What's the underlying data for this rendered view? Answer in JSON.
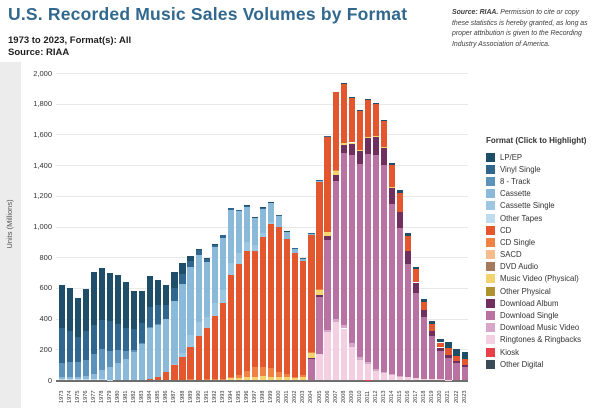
{
  "header": {
    "title": "U.S. Recorded Music Sales Volumes by Format",
    "subtitle_line1": "1973 to 2023, Format(s): All",
    "subtitle_line2": "Source: RIAA"
  },
  "source_note": {
    "lead": "Source: RIAA.",
    "body": " Permission to cite or copy these statistics is hereby granted, as long as proper attribution is given to the Recording Industry Association of America."
  },
  "legend": {
    "title": "Format (Click to Highlight)"
  },
  "y_axis": {
    "title": "Units (Millions)",
    "ticks": [
      {
        "v": 0,
        "label": "0"
      },
      {
        "v": 200,
        "label": "200"
      },
      {
        "v": 400,
        "label": "400"
      },
      {
        "v": 600,
        "label": "600"
      },
      {
        "v": 800,
        "label": "800"
      },
      {
        "v": 1000,
        "label": "1,000"
      },
      {
        "v": 1200,
        "label": "1,200"
      },
      {
        "v": 1400,
        "label": "1,400"
      },
      {
        "v": 1600,
        "label": "1,600"
      },
      {
        "v": 1800,
        "label": "1,800"
      },
      {
        "v": 2000,
        "label": "2,000"
      }
    ]
  },
  "chart_data": {
    "type": "bar",
    "stacked": true,
    "stack_order": "first series renders at top of each stacked bar",
    "title": "U.S. Recorded Music Sales Volumes by Format",
    "xlabel": "Year",
    "ylabel": "Units (Millions)",
    "ylim": [
      0,
      2000
    ],
    "grid": true,
    "legend_position": "right",
    "x": [
      1973,
      1974,
      1975,
      1976,
      1977,
      1978,
      1979,
      1980,
      1981,
      1982,
      1983,
      1984,
      1985,
      1986,
      1987,
      1988,
      1989,
      1990,
      1991,
      1992,
      1993,
      1994,
      1995,
      1996,
      1997,
      1998,
      1999,
      2000,
      2001,
      2002,
      2003,
      2004,
      2005,
      2006,
      2007,
      2008,
      2009,
      2010,
      2011,
      2012,
      2013,
      2014,
      2015,
      2016,
      2017,
      2018,
      2019,
      2020,
      2021,
      2022,
      2023
    ],
    "series": [
      {
        "name": "LP/EP",
        "color": "#1f4e68",
        "values": [
          280,
          276,
          257,
          273,
          344,
          341.3,
          318.3,
          322.8,
          295.2,
          243.9,
          209.6,
          204.6,
          167,
          125.2,
          107,
          72.4,
          34.6,
          11.7,
          4.8,
          2.3,
          1.2,
          1.9,
          2.2,
          2.9,
          2.7,
          3.4,
          2.9,
          2.2,
          2.3,
          1.7,
          1.5,
          1.4,
          1,
          0.9,
          1.3,
          2.9,
          3.2,
          4.2,
          5.5,
          6.5,
          9.4,
          13.2,
          16.9,
          17.2,
          15.6,
          16.7,
          18.8,
          22.9,
          39.7,
          41.3,
          43.2
        ]
      },
      {
        "name": "Vinyl Single",
        "color": "#31678f",
        "values": [
          228,
          204,
          164,
          190,
          190,
          190,
          195.5,
          164.3,
          154.7,
          137.2,
          124.8,
          131.5,
          120.7,
          93.9,
          82,
          65.6,
          36.6,
          27.6,
          22,
          19.8,
          15.1,
          11.7,
          10.2,
          10.1,
          7.5,
          5.4,
          5.3,
          4.8,
          5.5,
          4.4,
          3.8,
          3.5,
          2.8,
          2.3,
          1.7,
          0.4,
          0.9,
          1.2,
          1.3,
          1.4,
          0.8,
          0.8,
          0.8,
          0.7,
          0.7,
          0.6,
          0.6,
          0.6,
          0.8,
          0.9,
          1.2
        ]
      },
      {
        "name": "8 - Track",
        "color": "#5d93bb",
        "values": [
          91,
          96.7,
          94.6,
          106.1,
          127.3,
          133.6,
          104.7,
          86.4,
          48.5,
          14.3,
          6,
          5.9,
          3.5,
          0,
          0,
          0,
          0,
          0,
          0,
          0,
          0,
          0,
          0,
          0,
          0,
          0,
          0,
          0,
          0,
          0,
          0,
          0,
          0,
          0,
          0,
          0,
          0,
          0,
          0,
          0,
          0,
          0,
          0,
          0,
          0,
          0,
          0,
          0,
          0,
          0,
          0
        ]
      },
      {
        "name": "Cassette",
        "color": "#8ab9d9",
        "values": [
          15,
          15.3,
          16.2,
          21.8,
          36.9,
          61.3,
          78.5,
          110.2,
          137,
          182.3,
          236.8,
          332,
          339.1,
          344.5,
          410,
          450.1,
          446.2,
          442.2,
          360.1,
          366.4,
          339.5,
          345.4,
          272.6,
          225.3,
          172.6,
          158.5,
          123.6,
          76,
          45,
          31.1,
          17.2,
          5.2,
          2.5,
          0.7,
          0.4,
          0.1,
          0,
          0,
          0,
          0,
          0,
          0,
          0,
          0,
          0,
          0,
          0,
          0,
          0,
          0,
          0
        ]
      },
      {
        "name": "Cassette Single",
        "color": "#9cc6e2",
        "values": [
          0,
          0,
          0,
          0,
          0,
          0,
          0,
          0,
          0,
          0,
          0,
          0,
          0,
          0,
          5.1,
          22.5,
          76.2,
          87.4,
          69,
          84.6,
          85.6,
          81.1,
          70.7,
          59.9,
          42.2,
          26.4,
          14.2,
          1.3,
          0,
          0,
          0,
          0,
          0,
          0,
          0,
          0,
          0,
          0,
          0,
          0,
          0,
          0,
          0,
          0,
          0,
          0,
          0,
          0,
          0,
          0,
          0
        ]
      },
      {
        "name": "Other Tapes",
        "color": "#bfdcee",
        "values": [
          5,
          5,
          4,
          4,
          4,
          4,
          3,
          2,
          1,
          0.5,
          0.3,
          0,
          0,
          0,
          0,
          0,
          0,
          0,
          0,
          0,
          0,
          0,
          0,
          0,
          0,
          0,
          0,
          0,
          0,
          0,
          0,
          0,
          0,
          0,
          0,
          0,
          0,
          0,
          0,
          0,
          0,
          0,
          0,
          0,
          0,
          0,
          0,
          0,
          0,
          0,
          0
        ]
      },
      {
        "name": "CD",
        "color": "#e4572e",
        "values": [
          0,
          0,
          0,
          0,
          0,
          0,
          0,
          0,
          0,
          0,
          0.8,
          5.8,
          22.6,
          53,
          102.1,
          149.7,
          207.2,
          286.5,
          333.3,
          407.5,
          495.4,
          662.1,
          722.9,
          778.9,
          753.1,
          847,
          938.9,
          942.5,
          881.9,
          803.3,
          746,
          767,
          705.4,
          619.7,
          511.1,
          384.7,
          292.9,
          253,
          240.8,
          210.9,
          165.4,
          140.8,
          122.9,
          99.4,
          87.6,
          52,
          46.5,
          31.6,
          46.6,
          33.4,
          37
        ]
      },
      {
        "name": "CD Single",
        "color": "#f08344",
        "values": [
          0,
          0,
          0,
          0,
          0,
          0,
          0,
          0,
          0,
          0,
          0,
          0,
          0,
          0,
          0,
          1.6,
          9.2,
          1.1,
          5.7,
          7.3,
          7.8,
          9.3,
          21.5,
          43.2,
          66.8,
          56,
          55.9,
          34.2,
          17.3,
          4.5,
          8.3,
          3.1,
          2.8,
          1.7,
          2.6,
          0.7,
          1,
          1,
          0.9,
          0.6,
          0.5,
          0.4,
          0.4,
          0.3,
          0.3,
          0.2,
          0.2,
          0.1,
          0.1,
          0.1,
          0.1
        ]
      },
      {
        "name": "SACD",
        "color": "#f6bc8b",
        "values": [
          0,
          0,
          0,
          0,
          0,
          0,
          0,
          0,
          0,
          0,
          0,
          0,
          0,
          0,
          0,
          0,
          0,
          0,
          0,
          0,
          0,
          0,
          0,
          0,
          0,
          0,
          0,
          0,
          1.3,
          1.3,
          1.3,
          0.8,
          0.8,
          0.6,
          0.2,
          0,
          0,
          0,
          0,
          0,
          0,
          0,
          0,
          0,
          0,
          0,
          0,
          0,
          0,
          0,
          0
        ]
      },
      {
        "name": "DVD Audio",
        "color": "#a5795c",
        "values": [
          0,
          0,
          0,
          0,
          0,
          0,
          0,
          0,
          0,
          0,
          0,
          0,
          0,
          0,
          0,
          0,
          0,
          0,
          0,
          0,
          0,
          0,
          0,
          0,
          0,
          0,
          0,
          0,
          0.3,
          0.4,
          0.4,
          0.4,
          0.3,
          0.2,
          0.1,
          0,
          0,
          0,
          0,
          0,
          0,
          0,
          0,
          0,
          0,
          0,
          0,
          0,
          0,
          0,
          0
        ]
      },
      {
        "name": "Music Video (Physical)",
        "color": "#f3d36e",
        "values": [
          0,
          0,
          0,
          0,
          0,
          0,
          0,
          0,
          0,
          0,
          0,
          0,
          0,
          0,
          0,
          0,
          0,
          0,
          0,
          0,
          0,
          11.2,
          12.6,
          16.9,
          18.6,
          27.2,
          19.8,
          18.2,
          17.7,
          14.7,
          19.9,
          32.8,
          33.8,
          23.2,
          27.5,
          12.8,
          9.1,
          6.7,
          5.5,
          3.9,
          3.1,
          2.4,
          1.8,
          1.2,
          0.9,
          0.6,
          0.5,
          0.3,
          0.3,
          0.2,
          0.2
        ]
      },
      {
        "name": "Other Physical",
        "color": "#af9230",
        "values": [
          0,
          0,
          0,
          0,
          0,
          0,
          0,
          0,
          0,
          0,
          0,
          0,
          0,
          0,
          0,
          0,
          0,
          0,
          0,
          0,
          0,
          0,
          0,
          0,
          0,
          0,
          0,
          0,
          0,
          0,
          0,
          0.5,
          0.5,
          0.4,
          0.3,
          0.2,
          0.2,
          0.1,
          0,
          0,
          0,
          0,
          0,
          0,
          0,
          0,
          0,
          0,
          0,
          0,
          0
        ]
      },
      {
        "name": "Download Album",
        "color": "#702f5e",
        "values": [
          0,
          0,
          0,
          0,
          0,
          0,
          0,
          0,
          0,
          0,
          0,
          0,
          0,
          0,
          0,
          0,
          0,
          0,
          0,
          0,
          0,
          0,
          0,
          0,
          0,
          0,
          0,
          0,
          0,
          0,
          0,
          4.6,
          13.6,
          27.6,
          42.5,
          56.9,
          74.3,
          85.8,
          103.1,
          116.7,
          117.6,
          106.4,
          103.3,
          86.2,
          66.4,
          45.8,
          33.1,
          23.8,
          18.2,
          13.4,
          10.4
        ]
      },
      {
        "name": "Download Single",
        "color": "#b873a2",
        "values": [
          0,
          0,
          0,
          0,
          0,
          0,
          0,
          0,
          0,
          0,
          0,
          0,
          0,
          0,
          0,
          0,
          0,
          0,
          0,
          0,
          0,
          0,
          0,
          0,
          0,
          0,
          0,
          0,
          0,
          0,
          0,
          139.4,
          366.9,
          586.4,
          900,
          1120,
          1225,
          1260,
          1355,
          1395,
          1345,
          1109.9,
          964.8,
          734.1,
          554.7,
          403.4,
          280.5,
          184.3,
          140.5,
          108.5,
          86.1
        ]
      },
      {
        "name": "Download Music Video",
        "color": "#d8a6c8",
        "values": [
          0,
          0,
          0,
          0,
          0,
          0,
          0,
          0,
          0,
          0,
          0,
          0,
          0,
          0,
          0,
          0,
          0,
          0,
          0,
          0,
          0,
          0,
          0,
          0,
          0,
          0,
          0,
          0,
          0,
          0,
          0,
          0,
          1.9,
          9.9,
          14.2,
          20.8,
          21.4,
          20.2,
          16.9,
          12.1,
          8.4,
          5.3,
          3.6,
          2.1,
          1.1,
          0.6,
          0.4,
          0.2,
          0.1,
          0.1,
          0.1
        ]
      },
      {
        "name": "Ringtones & Ringbacks",
        "color": "#f3cfe1",
        "values": [
          0,
          0,
          0,
          0,
          0,
          0,
          0,
          0,
          0,
          0,
          0,
          0,
          0,
          0,
          0,
          0,
          0,
          0,
          0,
          0,
          0,
          0,
          0,
          0,
          0,
          0,
          0,
          0,
          0,
          0,
          0,
          0,
          170,
          315,
          380,
          335,
          215,
          125,
          100,
          58,
          43.4,
          31.8,
          21.9,
          15.9,
          11.6,
          7.7,
          5.2,
          3.3,
          2.4,
          1.8,
          1.4
        ]
      },
      {
        "name": "Kiosk",
        "color": "#e84048",
        "values": [
          0,
          0,
          0,
          0,
          0,
          0,
          0,
          0,
          0,
          0,
          0,
          0,
          0,
          0,
          0,
          0,
          0,
          0,
          0,
          0,
          0,
          0,
          0,
          0,
          0,
          0,
          0,
          0,
          0,
          0,
          0,
          0,
          0,
          0,
          0,
          0.5,
          1.5,
          1.8,
          2.3,
          2.1,
          1.6,
          1.1,
          0.7,
          0.4,
          0.2,
          0,
          0,
          0,
          0,
          0,
          0
        ]
      },
      {
        "name": "Other Digital",
        "color": "#3a4a57",
        "values": [
          0,
          0,
          0,
          0,
          0,
          0,
          0,
          0,
          0,
          0,
          0,
          0,
          0,
          0,
          0,
          0,
          0,
          0,
          0,
          0,
          0,
          0,
          0,
          0,
          0,
          0,
          0,
          0,
          0,
          0,
          0,
          0,
          0,
          0,
          0,
          0,
          0.3,
          0.5,
          0.6,
          0.5,
          0.4,
          0.3,
          0.2,
          0.2,
          0.1,
          0.1,
          0.1,
          0.1,
          0.1,
          0.1,
          0.1
        ]
      }
    ]
  }
}
